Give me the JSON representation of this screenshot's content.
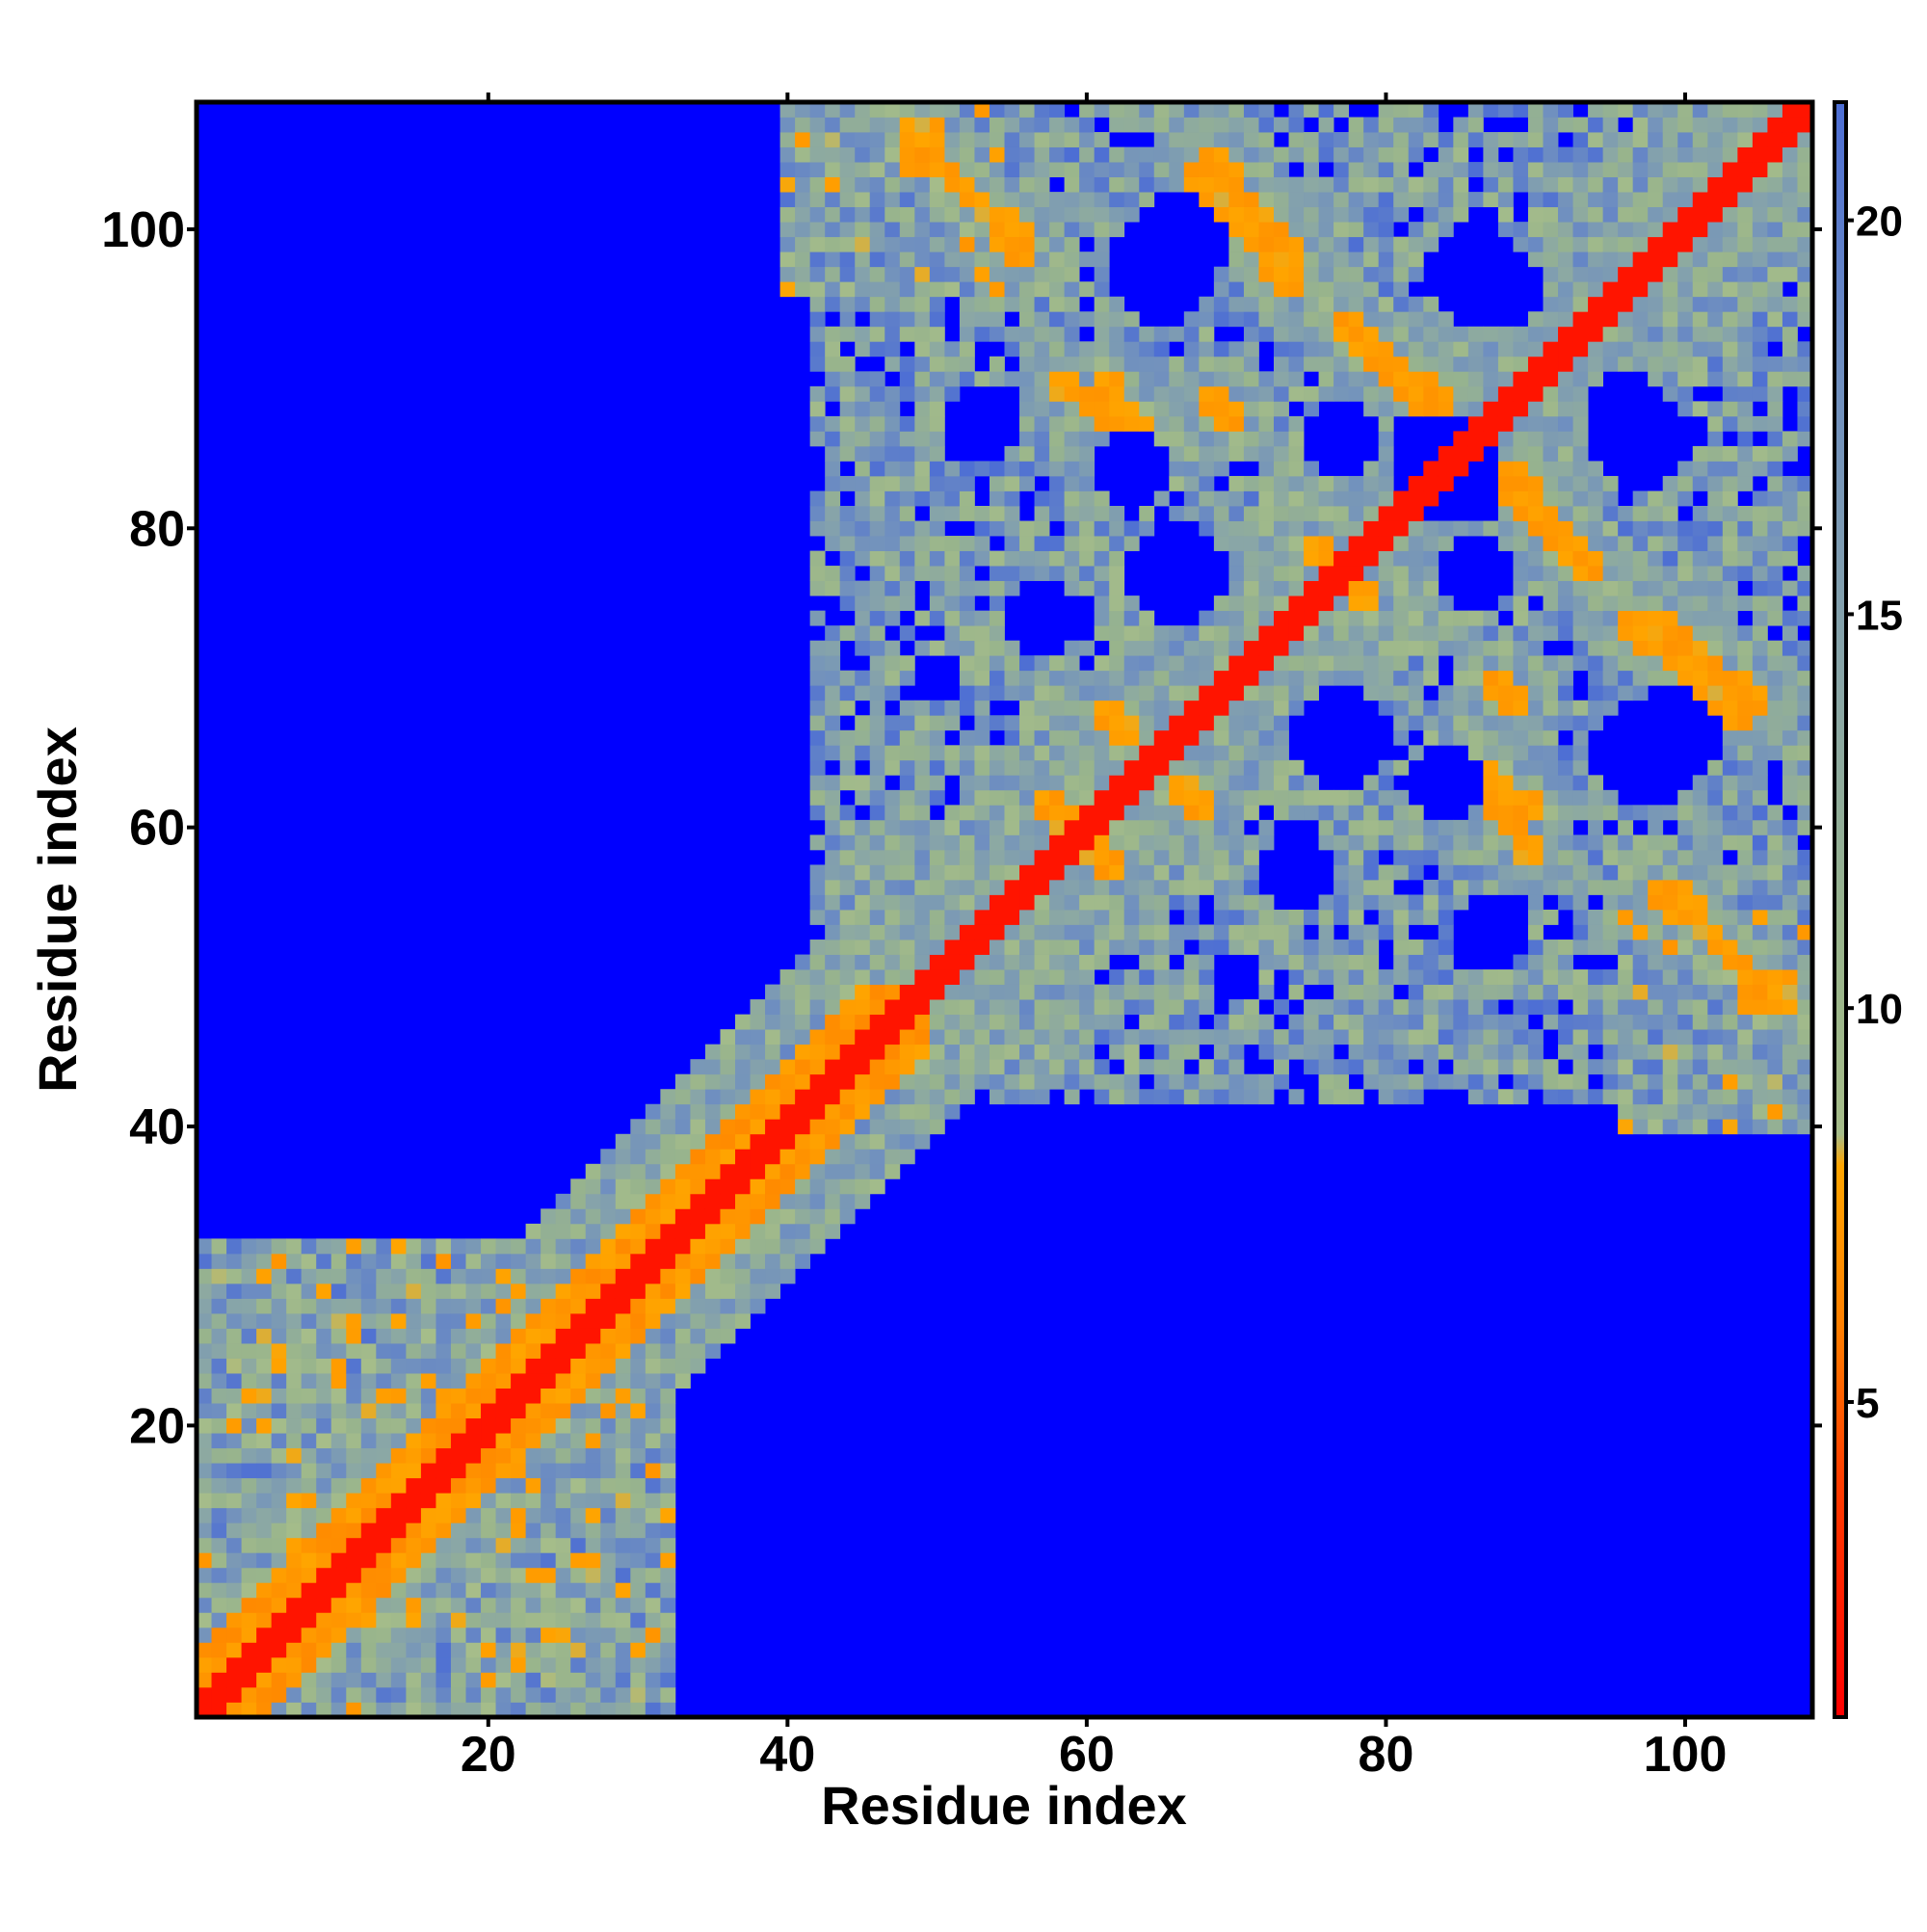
{
  "chart_data": {
    "type": "heatmap",
    "title": "",
    "xlabel": "Residue index",
    "ylabel": "Residue index",
    "n_residues": 108,
    "xlim": [
      1,
      108
    ],
    "ylim": [
      1,
      108
    ],
    "x_ticks": [
      20,
      40,
      60,
      80,
      100
    ],
    "y_ticks": [
      20,
      40,
      60,
      80,
      100
    ],
    "colorbar": {
      "ticks": [
        5,
        10,
        15,
        20
      ],
      "range": [
        1,
        21.5
      ],
      "stops": [
        {
          "value": 1.0,
          "color": "#ff0000"
        },
        {
          "value": 4.0,
          "color": "#ff3d00"
        },
        {
          "value": 6.0,
          "color": "#ff8000"
        },
        {
          "value": 8.0,
          "color": "#ffa500"
        },
        {
          "value": 8.4,
          "color": "#a6bd8a"
        },
        {
          "value": 11.0,
          "color": "#98b48c"
        },
        {
          "value": 14.0,
          "color": "#8aa7a6"
        },
        {
          "value": 18.0,
          "color": "#6f8fc0"
        },
        {
          "value": 21.5,
          "color": "#4d6ed4"
        }
      ]
    },
    "background_color": "#0000ff",
    "cutoff": 21.5,
    "diagonal_band": {
      "contact_width": 1.5,
      "orange_width": 4,
      "green_width": 10
    },
    "contact_patches": [
      {
        "x_range": [
          1,
          32
        ],
        "y_range": [
          1,
          32
        ],
        "level": 12
      },
      {
        "x_range": [
          44,
          108
        ],
        "y_range": [
          42,
          108
        ],
        "level": 14
      },
      {
        "x_range": [
          40,
          54
        ],
        "y_range": [
          96,
          108
        ],
        "level": 12
      },
      {
        "x_range": [
          96,
          108
        ],
        "y_range": [
          40,
          54
        ],
        "level": 12
      }
    ],
    "contact_strands": [
      {
        "from": [
          48,
          107
        ],
        "to": [
          56,
          98
        ],
        "level": 7
      },
      {
        "from": [
          67,
          104
        ],
        "to": [
          74,
          96
        ],
        "level": 7
      },
      {
        "from": [
          79,
          92
        ],
        "to": [
          84,
          86
        ],
        "level": 7
      },
      {
        "from": [
          61,
          90
        ],
        "to": [
          64,
          86
        ],
        "level": 7
      },
      {
        "from": [
          98,
          74
        ],
        "to": [
          105,
          68
        ],
        "level": 7
      },
      {
        "from": [
          99,
          56
        ],
        "to": [
          106,
          48
        ],
        "level": 7
      },
      {
        "from": [
          88,
          84
        ],
        "to": [
          94,
          77
        ],
        "level": 7
      },
      {
        "from": [
          87,
          62
        ],
        "to": [
          90,
          58
        ],
        "level": 7
      },
      {
        "from": [
          58,
          61
        ],
        "to": [
          62,
          57
        ],
        "level": 7
      },
      {
        "from": [
          66,
          63
        ],
        "to": [
          68,
          61
        ],
        "level": 7
      },
      {
        "from": [
          75,
          79
        ],
        "to": [
          77,
          77
        ],
        "level": 7
      },
      {
        "from": [
          87,
          70
        ],
        "to": [
          89,
          68
        ],
        "level": 7
      }
    ],
    "empty_pockets": [
      {
        "center": [
          66,
          99
        ],
        "radius": 3.5
      },
      {
        "center": [
          83,
          85
        ],
        "radius": 3
      },
      {
        "center": [
          97,
          86
        ],
        "radius": 3.5
      },
      {
        "center": [
          66,
          77
        ],
        "radius": 3
      },
      {
        "center": [
          86,
          77
        ],
        "radius": 2.5
      },
      {
        "center": [
          77,
          66
        ],
        "radius": 3.5
      },
      {
        "center": [
          97,
          65
        ],
        "radius": 3.5
      },
      {
        "center": [
          63,
          84
        ],
        "radius": 2.5
      },
      {
        "center": [
          74,
          57
        ],
        "radius": 2.5
      },
      {
        "center": [
          87,
          53
        ],
        "radius": 2.5
      },
      {
        "center": [
          50,
          70
        ],
        "radius": 2
      },
      {
        "center": [
          88,
          96
        ],
        "radius": 2.5
      }
    ]
  }
}
